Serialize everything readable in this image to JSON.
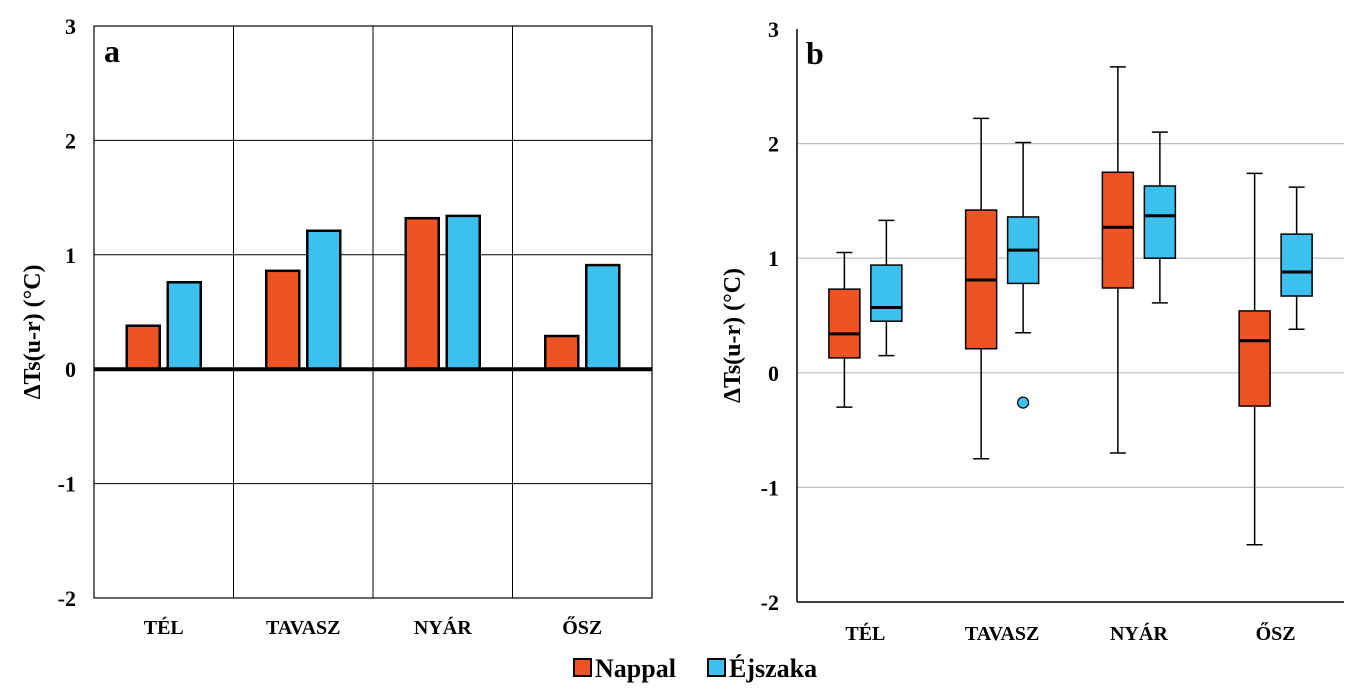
{
  "colors": {
    "day": "#f05323",
    "night": "#3cc1ef",
    "edge": "#000000",
    "grid_b": "#bdbdbd"
  },
  "legend": [
    {
      "name": "Nappal",
      "color": "#f05323"
    },
    {
      "name": "Éjszaka",
      "color": "#3cc1ef"
    }
  ],
  "chart_data": [
    {
      "panel": "a",
      "type": "bar",
      "ylabel": "ΔTs(u-r) (°C)",
      "ylim": [
        -2,
        3
      ],
      "yticks": [
        3,
        2,
        1,
        0,
        -1,
        -2
      ],
      "grid": true,
      "categories": [
        "TÉL",
        "TAVASZ",
        "NYÁR",
        "ŐSZ"
      ],
      "series": [
        {
          "name": "Nappal",
          "values": [
            0.38,
            0.86,
            1.32,
            0.29
          ]
        },
        {
          "name": "Éjszaka",
          "values": [
            0.76,
            1.21,
            1.34,
            0.91
          ]
        }
      ]
    },
    {
      "panel": "b",
      "type": "box",
      "ylabel": "ΔTs(u-r) (°C)",
      "ylim": [
        -2,
        3
      ],
      "yticks": [
        3,
        2,
        1,
        0,
        -1,
        -2
      ],
      "grid": true,
      "categories": [
        "TÉL",
        "TAVASZ",
        "NYÁR",
        "ŐSZ"
      ],
      "series": [
        {
          "name": "Nappal",
          "boxes": [
            {
              "min": -0.3,
              "q1": 0.13,
              "median": 0.34,
              "q3": 0.73,
              "max": 1.05,
              "outliers": []
            },
            {
              "min": -0.75,
              "q1": 0.21,
              "median": 0.81,
              "q3": 1.42,
              "max": 2.22,
              "outliers": []
            },
            {
              "min": -0.7,
              "q1": 0.74,
              "median": 1.27,
              "q3": 1.75,
              "max": 2.67,
              "outliers": []
            },
            {
              "min": -1.5,
              "q1": -0.29,
              "median": 0.28,
              "q3": 0.54,
              "max": 1.74,
              "outliers": []
            }
          ]
        },
        {
          "name": "Éjszaka",
          "boxes": [
            {
              "min": 0.15,
              "q1": 0.45,
              "median": 0.57,
              "q3": 0.94,
              "max": 1.33,
              "outliers": []
            },
            {
              "min": 0.35,
              "q1": 0.78,
              "median": 1.07,
              "q3": 1.36,
              "max": 2.01,
              "outliers": [
                -0.26
              ]
            },
            {
              "min": 0.61,
              "q1": 1.0,
              "median": 1.37,
              "q3": 1.63,
              "max": 2.1,
              "outliers": []
            },
            {
              "min": 0.38,
              "q1": 0.67,
              "median": 0.88,
              "q3": 1.21,
              "max": 1.62,
              "outliers": []
            }
          ]
        }
      ]
    }
  ]
}
